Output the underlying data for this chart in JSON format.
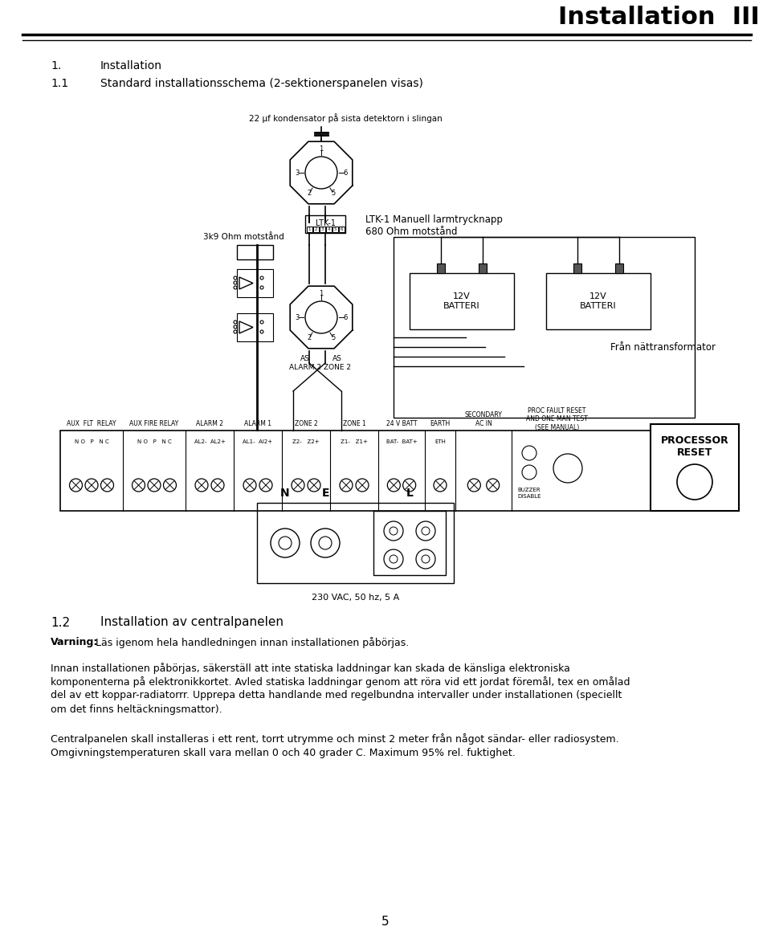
{
  "page_title": "Installation  III",
  "section1_label": "1.",
  "section1_text": "Installation",
  "section11_label": "1.1",
  "section11_text": "Standard installationsschema (2-sektionerspanelen visas)",
  "capacitor_label": "22 μf kondensator på sista detektorn i slingan",
  "resistor_label": "3k9 Ohm motstånd",
  "ltk_label": "LTK-1",
  "ltk_desc1": "LTK-1 Manuell larmtrycknapp",
  "ltk_desc2": "680 Ohm motstånd",
  "batt1_label": "12V\nBATTERI",
  "batt2_label": "12V\nBATTERI",
  "transformer_label": "Från nättransformator",
  "as_alarm2": "AS\nALARM 2",
  "as_zone2": "AS\nZONE 2",
  "processor_label": "PROCESSOR\nRESET",
  "buzzer_label": "BUZZER\nDISABLE",
  "nel_labels": [
    "N",
    "E",
    "L"
  ],
  "nel_desc": "230 VAC, 50 hz, 5 A",
  "section12_label": "1.2",
  "section12_text": "Installation av centralpanelen",
  "warning_bold": "Varning:",
  "warning_text": " Läs igenom hela handledningen innan installationen påbörjas.",
  "para1_line1": "Innan installationen påbörjas, säkerställ att inte statiska laddningar kan skada de känsliga elektroniska",
  "para1_line2": "komponenterna på elektronikkortet. Avled statiska laddningar genom att röra vid ett jordat föremål, tex en omålad",
  "para1_line3": "del av ett koppar-radiatorrr. Upprepa detta handlande med regelbundna intervaller under installationen (speciellt",
  "para1_line4": "om det finns heltäckningsmattor).",
  "para2_line1": "Centralpanelen skall installeras i ett rent, torrt utrymme och minst 2 meter från något sändar- eller radiosystem.",
  "para2_line2": "Omgivningstemperaturen skall vara mellan 0 och 40 grader C. Maximum 95% rel. fuktighet.",
  "page_number": "5",
  "bg_color": "#ffffff",
  "fg_color": "#000000"
}
